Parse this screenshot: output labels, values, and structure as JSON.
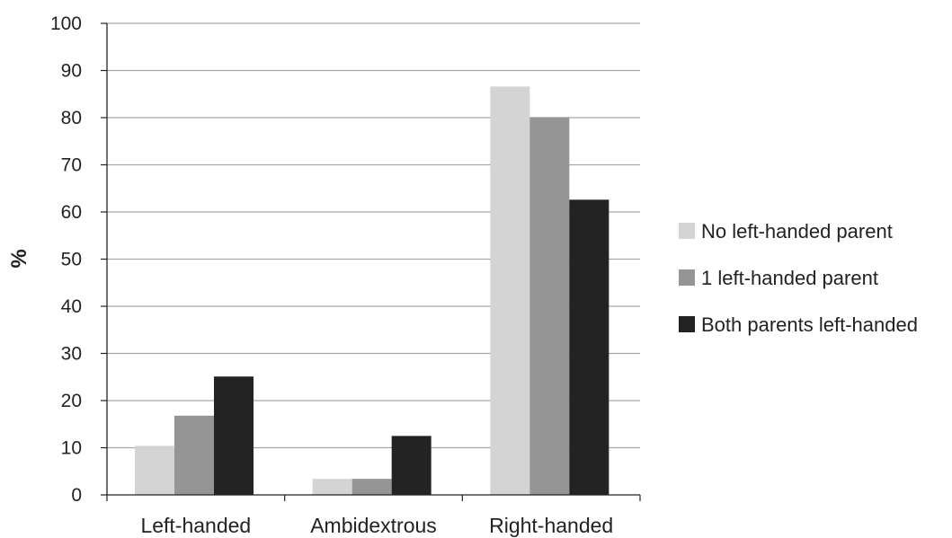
{
  "chart_data": {
    "type": "bar",
    "categories": [
      "Left-handed",
      "Ambidextrous",
      "Right-handed"
    ],
    "series": [
      {
        "name": "No left-handed parent",
        "values": [
          10.4,
          3.4,
          86.6
        ],
        "color": "#d4d4d4"
      },
      {
        "name": "1 left-handed parent",
        "values": [
          16.8,
          3.4,
          80.1
        ],
        "color": "#959595"
      },
      {
        "name": "Both parents left-handed",
        "values": [
          25.1,
          12.5,
          62.6
        ],
        "color": "#232323"
      }
    ],
    "title": "",
    "xlabel": "",
    "ylabel": "%",
    "ylim": [
      0,
      100
    ],
    "yticks": [
      0,
      10,
      20,
      30,
      40,
      50,
      60,
      70,
      80,
      90,
      100
    ],
    "grid": true,
    "legend_position": "right",
    "gridline_color": "#a6a6a6",
    "axis_color": "#222222"
  }
}
